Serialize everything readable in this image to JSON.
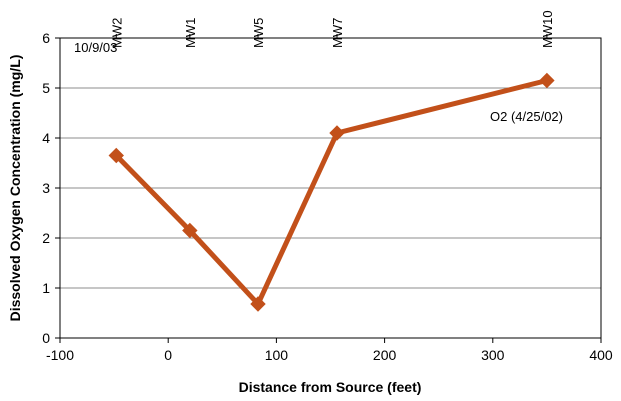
{
  "chart_data": {
    "type": "line",
    "title": "",
    "xlabel": "Distance from Source (feet)",
    "ylabel": "Dissolved Oxygen Concentration (mg/L)",
    "xlim": [
      -100,
      400
    ],
    "ylim": [
      0,
      6
    ],
    "x_ticks": [
      -100,
      0,
      100,
      200,
      300,
      400
    ],
    "x_tick_labels": [
      "-100",
      "0",
      "100",
      "200",
      "300",
      "400"
    ],
    "y_ticks": [
      0,
      1,
      2,
      3,
      4,
      5,
      6
    ],
    "y_tick_labels": [
      "0",
      "1",
      "2",
      "3",
      "4",
      "5",
      "6"
    ],
    "grid": "horizontal",
    "series": [
      {
        "name": "O2 (4/25/02)",
        "x": [
          -48,
          20,
          83,
          156,
          350
        ],
        "y": [
          3.65,
          2.15,
          0.68,
          4.1,
          5.15
        ],
        "color": "#c2501a",
        "marker": "diamond"
      }
    ],
    "well_labels": [
      {
        "label": "MW2",
        "x": -48
      },
      {
        "label": "MW1",
        "x": 20
      },
      {
        "label": "MW5",
        "x": 83
      },
      {
        "label": "MW7",
        "x": 156
      },
      {
        "label": "MW10",
        "x": 350
      }
    ],
    "annotations": {
      "date": "10/9/03",
      "series_label": "O2 (4/25/02)"
    }
  }
}
